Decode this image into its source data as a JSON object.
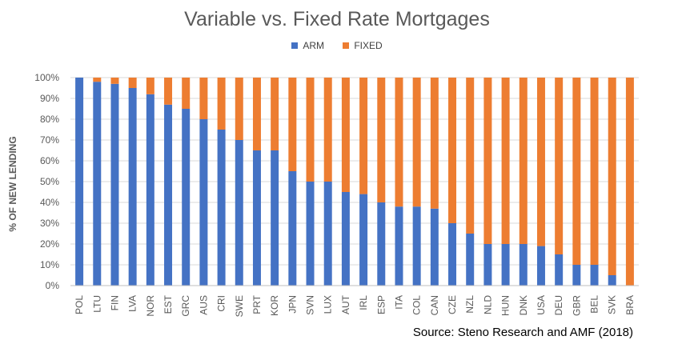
{
  "chart_data": {
    "type": "bar",
    "stacked": true,
    "title": "Variable vs. Fixed Rate Mortgages",
    "ylabel": "% OF NEW LENDING",
    "ylim": [
      0,
      100
    ],
    "yticks": [
      "0%",
      "10%",
      "20%",
      "30%",
      "40%",
      "50%",
      "60%",
      "70%",
      "80%",
      "90%",
      "100%"
    ],
    "legend_position": "top",
    "categories": [
      "POL",
      "LTU",
      "FIN",
      "LVA",
      "NOR",
      "EST",
      "GRC",
      "AUS",
      "CRI",
      "SWE",
      "PRT",
      "KOR",
      "JPN",
      "SVN",
      "LUX",
      "AUT",
      "IRL",
      "ESP",
      "ITA",
      "COL",
      "CAN",
      "CZE",
      "NZL",
      "NLD",
      "HUN",
      "DNK",
      "USA",
      "DEU",
      "GBR",
      "BEL",
      "SVK",
      "BRA"
    ],
    "series": [
      {
        "name": "ARM",
        "color": "#4472C4",
        "values": [
          100,
          98,
          97,
          95,
          92,
          87,
          85,
          80,
          75,
          70,
          65,
          65,
          55,
          50,
          50,
          45,
          44,
          40,
          38,
          38,
          37,
          30,
          25,
          20,
          20,
          20,
          19,
          15,
          10,
          10,
          5,
          0
        ]
      },
      {
        "name": "FIXED",
        "color": "#ED7D31",
        "values": [
          0,
          2,
          3,
          5,
          8,
          13,
          15,
          20,
          25,
          30,
          35,
          35,
          45,
          50,
          50,
          55,
          56,
          60,
          62,
          62,
          63,
          70,
          75,
          80,
          80,
          80,
          81,
          85,
          90,
          90,
          95,
          100
        ]
      }
    ],
    "grid": true,
    "source": "Source: Steno Research and AMF (2018)"
  }
}
